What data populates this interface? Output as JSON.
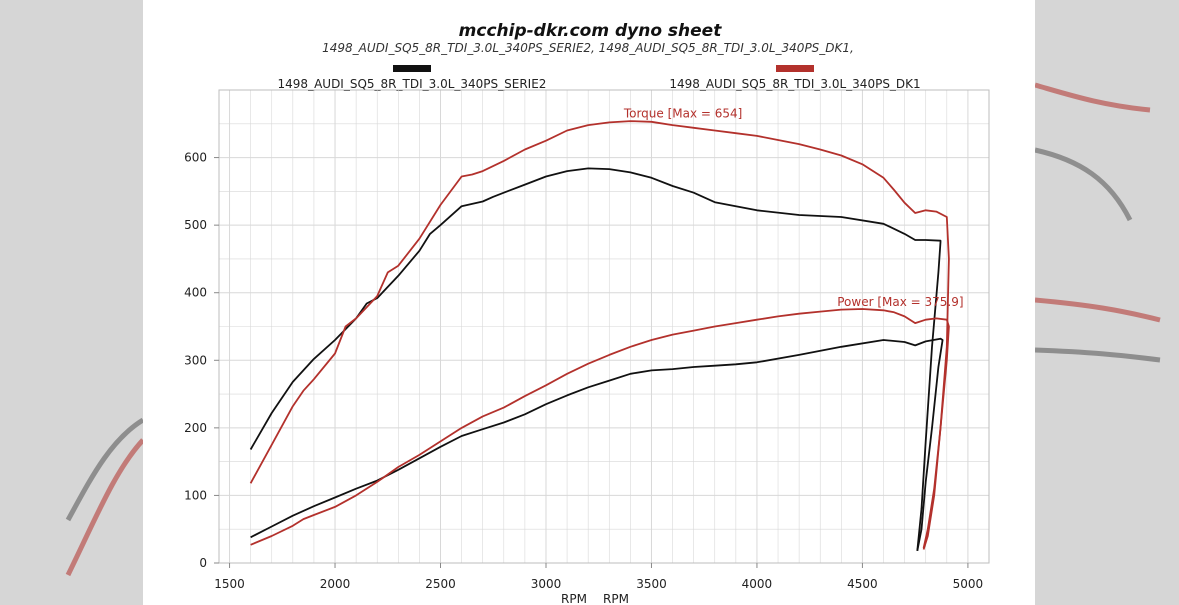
{
  "chart_data": {
    "type": "line",
    "title": "mcchip-dkr.com dyno sheet",
    "subtitle": "1498_AUDI_SQ5_8R_TDI_3.0L_340PS_SERIE2, 1498_AUDI_SQ5_8R_TDI_3.0L_340PS_DK1,",
    "xlabel": "RPM",
    "xlabel_secondary": "RPM",
    "xlim": [
      1450,
      5100
    ],
    "ylim": [
      0,
      700
    ],
    "xticks": [
      1500,
      2000,
      2500,
      3000,
      3500,
      4000,
      4500,
      5000
    ],
    "yticks": [
      0,
      100,
      200,
      300,
      400,
      500,
      600
    ],
    "grid": true,
    "legend_placement": "top",
    "colors": {
      "serie2": "#111111",
      "dk1": "#b3312c",
      "torque_annot": "#b3312c",
      "power_annot": "#b3312c",
      "grid": "#d8d8d8",
      "frame": "#bdbdbd"
    },
    "annotations": [
      {
        "label": "Torque [Max = 654]",
        "x": 3650,
        "y": 659
      },
      {
        "label": "Power  [Max = 375.9]",
        "x": 4680,
        "y": 380
      }
    ],
    "series": [
      {
        "name": "1498_AUDI_SQ5_8R_TDI_3.0L_340PS_SERIE2",
        "key": "serie2",
        "curves": [
          {
            "quantity": "torque",
            "x": [
              1600,
              1700,
              1800,
              1900,
              2000,
              2100,
              2150,
              2200,
              2300,
              2400,
              2450,
              2500,
              2600,
              2700,
              2750,
              2800,
              2900,
              3000,
              3100,
              3200,
              3300,
              3400,
              3500,
              3600,
              3700,
              3800,
              3900,
              4000,
              4200,
              4400,
              4600,
              4700,
              4750,
              4800,
              4870,
              4870,
              4860,
              4830,
              4800,
              4780,
              4760
            ],
            "y": [
              168,
              222,
              268,
              302,
              330,
              362,
              384,
              392,
              425,
              462,
              487,
              500,
              528,
              535,
              542,
              548,
              560,
              572,
              580,
              584,
              583,
              578,
              570,
              558,
              548,
              534,
              528,
              522,
              515,
              512,
              502,
              487,
              478,
              478,
              477,
              475,
              430,
              320,
              180,
              80,
              18
            ]
          },
          {
            "quantity": "power",
            "x": [
              1600,
              1700,
              1800,
              1900,
              2000,
              2100,
              2200,
              2300,
              2400,
              2500,
              2600,
              2700,
              2800,
              2900,
              3000,
              3100,
              3200,
              3300,
              3400,
              3500,
              3600,
              3700,
              3800,
              3900,
              4000,
              4200,
              4400,
              4600,
              4700,
              4750,
              4800,
              4870,
              4880,
              4860,
              4830,
              4800,
              4780,
              4760
            ],
            "y": [
              38,
              54,
              70,
              84,
              97,
              110,
              122,
              138,
              155,
              172,
              188,
              198,
              208,
              220,
              235,
              248,
              260,
              270,
              280,
              285,
              287,
              290,
              292,
              294,
              297,
              308,
              320,
              330,
              327,
              322,
              328,
              332,
              330,
              290,
              200,
              120,
              50,
              18
            ]
          }
        ]
      },
      {
        "name": "1498_AUDI_SQ5_8R_TDI_3.0L_340PS_DK1",
        "key": "dk1",
        "curves": [
          {
            "quantity": "torque",
            "x": [
              1600,
              1700,
              1800,
              1850,
              1900,
              2000,
              2050,
              2100,
              2200,
              2250,
              2300,
              2400,
              2500,
              2600,
              2650,
              2700,
              2800,
              2900,
              3000,
              3100,
              3200,
              3300,
              3400,
              3500,
              3600,
              3700,
              3800,
              3900,
              4000,
              4100,
              4200,
              4300,
              4400,
              4500,
              4600,
              4650,
              4700,
              4750,
              4800,
              4850,
              4900,
              4910,
              4900,
              4870,
              4840,
              4810,
              4790
            ],
            "y": [
              118,
              175,
              232,
              255,
              272,
              310,
              350,
              362,
              395,
              430,
              440,
              480,
              530,
              572,
              575,
              580,
              595,
              612,
              625,
              640,
              648,
              652,
              654,
              653,
              648,
              644,
              640,
              636,
              632,
              626,
              620,
              612,
              603,
              590,
              570,
              552,
              533,
              518,
              522,
              520,
              512,
              450,
              320,
              200,
              100,
              40,
              20
            ]
          },
          {
            "quantity": "power",
            "x": [
              1600,
              1700,
              1800,
              1850,
              1900,
              2000,
              2100,
              2200,
              2300,
              2400,
              2500,
              2600,
              2700,
              2800,
              2900,
              3000,
              3100,
              3200,
              3300,
              3400,
              3500,
              3600,
              3700,
              3800,
              3900,
              4000,
              4100,
              4200,
              4300,
              4400,
              4500,
              4600,
              4650,
              4700,
              4750,
              4800,
              4850,
              4900,
              4910,
              4900,
              4870,
              4840,
              4810,
              4790
            ],
            "y": [
              27,
              40,
              55,
              65,
              71,
              83,
              100,
              120,
              142,
              160,
              180,
              200,
              217,
              230,
              247,
              263,
              280,
              295,
              308,
              320,
              330,
              338,
              344,
              350,
              355,
              360,
              365,
              369,
              372,
              375,
              375.9,
              374,
              371,
              365,
              355,
              360,
              362,
              360,
              350,
              300,
              200,
              110,
              50,
              22
            ]
          }
        ]
      }
    ]
  }
}
